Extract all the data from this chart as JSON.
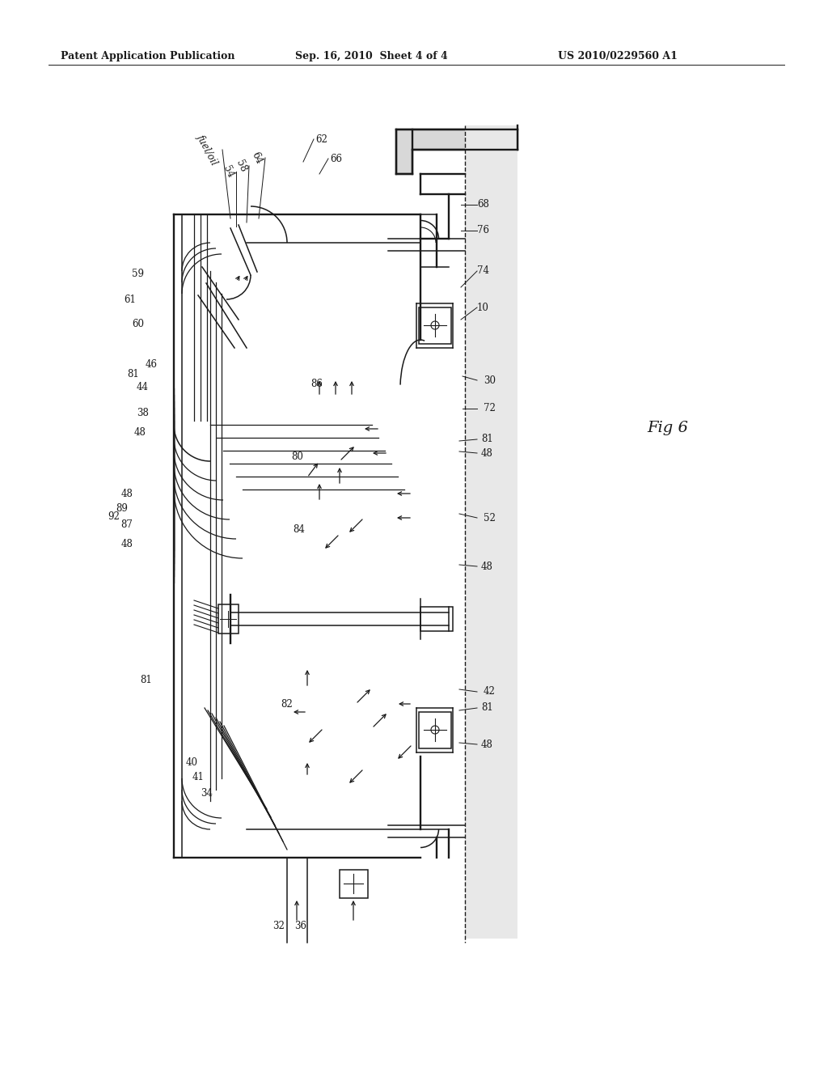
{
  "title_left": "Patent Application Publication",
  "title_mid": "Sep. 16, 2010  Sheet 4 of 4",
  "title_right": "US 2010/0229560 A1",
  "fig_label": "Fig 6",
  "bg_color": "#ffffff",
  "line_color": "#1a1a1a",
  "title_fontsize": 9,
  "label_fontsize": 8.5
}
